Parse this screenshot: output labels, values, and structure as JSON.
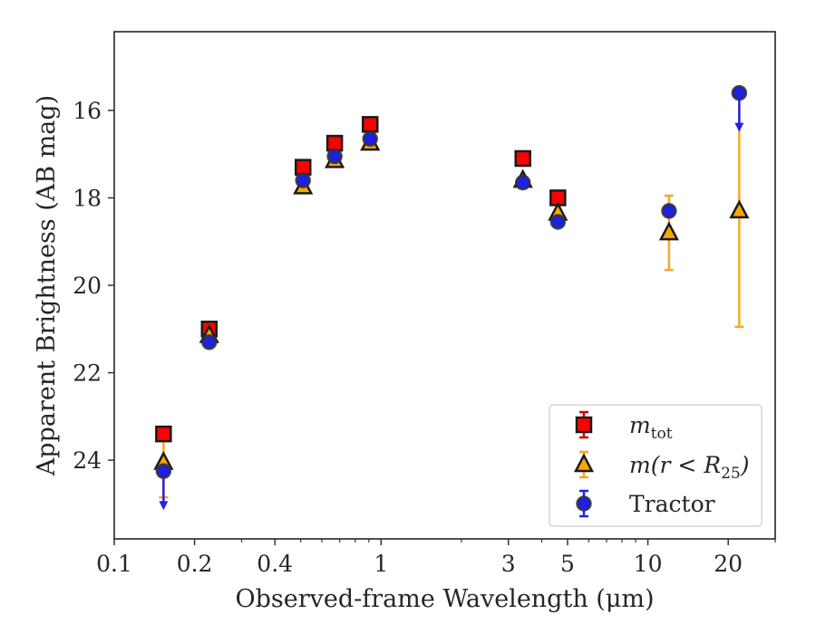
{
  "chart_data": {
    "type": "scatter",
    "title": "",
    "xlabel": "Observed-frame Wavelength (μm)",
    "ylabel": "Apparent Brightness (AB mag)",
    "xscale": "log",
    "xlim": [
      0.1,
      30
    ],
    "ylim": [
      25.8,
      14.2
    ],
    "y_inverted": true,
    "grid": false,
    "legend_position": "lower-right",
    "xticks": [
      {
        "value": 0.1,
        "label": "0.1"
      },
      {
        "value": 0.2,
        "label": "0.2"
      },
      {
        "value": 0.4,
        "label": "0.4"
      },
      {
        "value": 1,
        "label": "1"
      },
      {
        "value": 3,
        "label": "3"
      },
      {
        "value": 5,
        "label": "5"
      },
      {
        "value": 10,
        "label": "10"
      },
      {
        "value": 20,
        "label": "20"
      }
    ],
    "yticks": [
      {
        "value": 16,
        "label": "16"
      },
      {
        "value": 18,
        "label": "18"
      },
      {
        "value": 20,
        "label": "20"
      },
      {
        "value": 22,
        "label": "22"
      },
      {
        "value": 24,
        "label": "24"
      }
    ],
    "series": [
      {
        "name": "m_tot",
        "legend_base": "m",
        "legend_sub": "tot",
        "marker": "square",
        "color": "#ff0000",
        "edge_color": "#1a1a1a",
        "errorbar_color": "#d40000",
        "points": [
          {
            "x": 0.153,
            "y": 23.4
          },
          {
            "x": 0.227,
            "y": 21.0
          },
          {
            "x": 0.51,
            "y": 17.3
          },
          {
            "x": 0.67,
            "y": 16.75
          },
          {
            "x": 0.91,
            "y": 16.32
          },
          {
            "x": 3.4,
            "y": 17.1
          },
          {
            "x": 4.6,
            "y": 18.0
          }
        ]
      },
      {
        "name": "m(r < R25)",
        "legend_base": "m(r < R",
        "legend_sub": "25",
        "legend_end": ")",
        "marker": "triangle",
        "color": "#ffa500",
        "edge_color": "#1a1a1a",
        "errorbar_color": "#f9a825",
        "points": [
          {
            "x": 0.153,
            "y": 24.05,
            "err_low": 0.8,
            "err_high": 0.5
          },
          {
            "x": 0.227,
            "y": 21.15
          },
          {
            "x": 0.51,
            "y": 17.75
          },
          {
            "x": 0.67,
            "y": 17.15
          },
          {
            "x": 0.91,
            "y": 16.75
          },
          {
            "x": 3.4,
            "y": 17.6
          },
          {
            "x": 4.6,
            "y": 18.35
          },
          {
            "x": 12.0,
            "y": 18.8,
            "err_low": 0.85,
            "err_high": 0.85
          },
          {
            "x": 22.0,
            "y": 18.3,
            "err_low": 2.65,
            "err_high": 2.65
          }
        ]
      },
      {
        "name": "Tractor",
        "legend_base": "Tractor",
        "marker": "circle",
        "color": "#1f1fe0",
        "edge_color": "#333333",
        "errorbar_color": "#2323e6",
        "points": [
          {
            "x": 0.153,
            "y": 24.25,
            "upper_limit_arrow_to": 25.1
          },
          {
            "x": 0.227,
            "y": 21.3
          },
          {
            "x": 0.51,
            "y": 17.6
          },
          {
            "x": 0.67,
            "y": 17.05
          },
          {
            "x": 0.91,
            "y": 16.65
          },
          {
            "x": 3.4,
            "y": 17.65
          },
          {
            "x": 4.6,
            "y": 18.55
          },
          {
            "x": 12.0,
            "y": 18.3
          },
          {
            "x": 22.0,
            "y": 15.6,
            "upper_limit_arrow_to": 16.45
          }
        ]
      }
    ]
  }
}
